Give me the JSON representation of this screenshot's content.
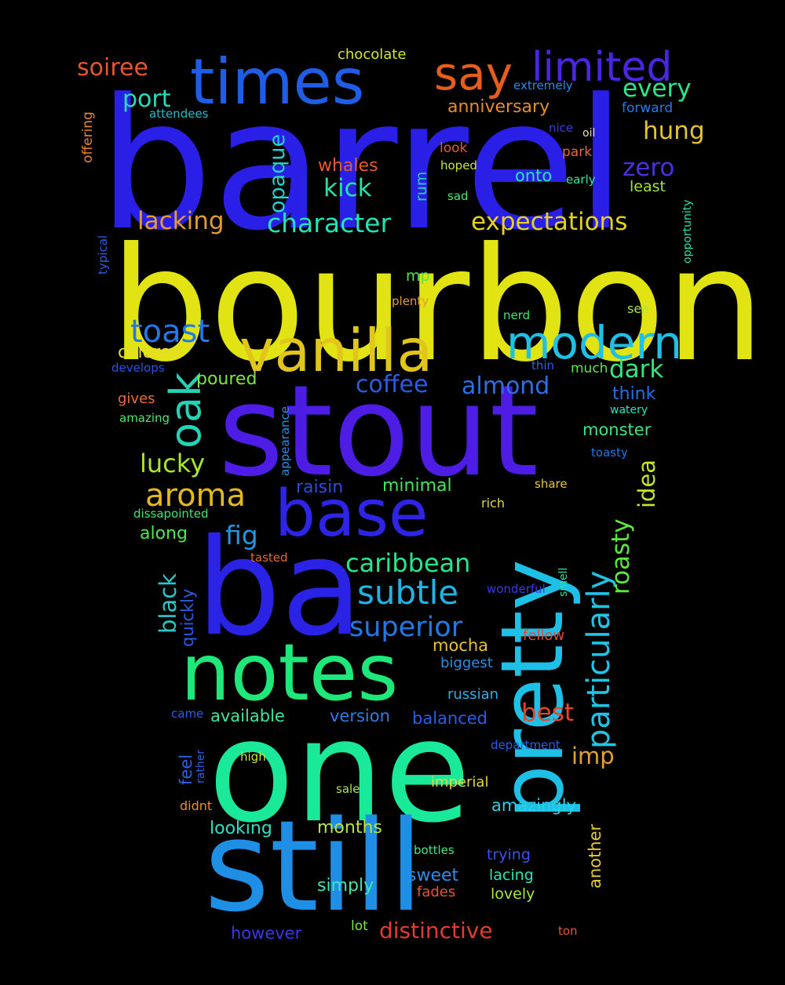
{
  "background": "#000000",
  "words": [
    {
      "text": "barrel",
      "color": "#2a1fe6"
    },
    {
      "text": "bourbon",
      "color": "#e2e312"
    },
    {
      "text": "stout",
      "color": "#4d1de6"
    },
    {
      "text": "one",
      "color": "#1ae99a"
    },
    {
      "text": "ba",
      "color": "#2a22e4"
    },
    {
      "text": "still",
      "color": "#1f8fe6"
    },
    {
      "text": "notes",
      "color": "#1fe87a"
    },
    {
      "text": "pretty",
      "color": "#1ec0e6"
    },
    {
      "text": "times",
      "color": "#1f5de6"
    },
    {
      "text": "vanilla",
      "color": "#e1c51a"
    },
    {
      "text": "base",
      "color": "#2d24e6"
    },
    {
      "text": "modern",
      "color": "#1fc0e4"
    },
    {
      "text": "say",
      "color": "#e65e1e"
    },
    {
      "text": "limited",
      "color": "#4a25e4"
    },
    {
      "text": "oak",
      "color": "#22d3b6"
    },
    {
      "text": "subtle",
      "color": "#20b3e6"
    },
    {
      "text": "toast",
      "color": "#2278e6"
    },
    {
      "text": "aroma",
      "color": "#e3ba1e"
    },
    {
      "text": "superior",
      "color": "#2079e6"
    },
    {
      "text": "caribbean",
      "color": "#25e88c"
    },
    {
      "text": "particularly",
      "color": "#21c3e6"
    },
    {
      "text": "character",
      "color": "#22e4b8"
    },
    {
      "text": "expectations",
      "color": "#e6d21e"
    },
    {
      "text": "lacking",
      "color": "#e69b2e"
    },
    {
      "text": "coffee",
      "color": "#2a5ce6"
    },
    {
      "text": "almond",
      "color": "#2a70e6"
    },
    {
      "text": "lucky",
      "color": "#a8e62a"
    },
    {
      "text": "every",
      "color": "#2de88a"
    },
    {
      "text": "port",
      "color": "#20e0c0"
    },
    {
      "text": "soiree",
      "color": "#e6552e"
    },
    {
      "text": "hung",
      "color": "#e6c22e"
    },
    {
      "text": "kick",
      "color": "#22e4a8"
    },
    {
      "text": "zero",
      "color": "#4a30e4"
    },
    {
      "text": "dark",
      "color": "#34e67e"
    },
    {
      "text": "fig",
      "color": "#2096e4"
    },
    {
      "text": "best",
      "color": "#e6462e"
    },
    {
      "text": "roasty",
      "color": "#5ee640"
    },
    {
      "text": "idea",
      "color": "#c4e62a"
    },
    {
      "text": "imp",
      "color": "#e6a22e"
    },
    {
      "text": "opaque",
      "color": "#22d6d0"
    },
    {
      "text": "black",
      "color": "#2cc6c8"
    },
    {
      "text": "anniversary",
      "color": "#e68e2e"
    },
    {
      "text": "whales",
      "color": "#e65a2e"
    },
    {
      "text": "toasty",
      "color": "#2078e4"
    },
    {
      "text": "chocolate",
      "color": "#d8e62a"
    },
    {
      "text": "colored",
      "color": "#e6dc2e"
    },
    {
      "text": "poured",
      "color": "#7ee640"
    },
    {
      "text": "along",
      "color": "#50e650"
    },
    {
      "text": "raisin",
      "color": "#2e4ae6"
    },
    {
      "text": "minimal",
      "color": "#40e660"
    },
    {
      "text": "mocha",
      "color": "#e6c22e"
    },
    {
      "text": "monster",
      "color": "#40e67a"
    },
    {
      "text": "think",
      "color": "#2a6ee6"
    },
    {
      "text": "available",
      "color": "#40e69a"
    },
    {
      "text": "version",
      "color": "#2a7ee6"
    },
    {
      "text": "balanced",
      "color": "#2a5ee6"
    },
    {
      "text": "looking",
      "color": "#2ee0c8"
    },
    {
      "text": "months",
      "color": "#b8e63a"
    },
    {
      "text": "amazingly",
      "color": "#2ad0e6"
    },
    {
      "text": "simply",
      "color": "#40e6b0"
    },
    {
      "text": "sweet",
      "color": "#2a8ee6"
    },
    {
      "text": "distinctive",
      "color": "#e63a2e"
    },
    {
      "text": "however",
      "color": "#3a38e6"
    },
    {
      "text": "another",
      "color": "#e6c83a"
    },
    {
      "text": "feel",
      "color": "#2a62e6"
    },
    {
      "text": "quickly",
      "color": "#2a5ce6"
    },
    {
      "text": "onto",
      "color": "#2ae6b0"
    },
    {
      "text": "rum",
      "color": "#2ad0c0"
    },
    {
      "text": "least",
      "color": "#a0e63a"
    },
    {
      "text": "mp",
      "color": "#50e650"
    },
    {
      "text": "much",
      "color": "#60e640"
    },
    {
      "text": "imperial",
      "color": "#e6d83a"
    },
    {
      "text": "russian",
      "color": "#2ab0e6"
    },
    {
      "text": "biggest",
      "color": "#2a8ee6"
    },
    {
      "text": "lacing",
      "color": "#2ae6b8"
    },
    {
      "text": "lovely",
      "color": "#a8e63a"
    },
    {
      "text": "trying",
      "color": "#3a52e6"
    },
    {
      "text": "fades",
      "color": "#e6543a"
    },
    {
      "text": "lot",
      "color": "#7ee640"
    },
    {
      "text": "ton",
      "color": "#e6543a"
    },
    {
      "text": "look",
      "color": "#e65a2e"
    },
    {
      "text": "park",
      "color": "#e6683a"
    },
    {
      "text": "rich",
      "color": "#e6d83a"
    },
    {
      "text": "share",
      "color": "#e6c83a"
    },
    {
      "text": "fellow",
      "color": "#e6483a"
    },
    {
      "text": "plenty",
      "color": "#e69a2e"
    },
    {
      "text": "gives",
      "color": "#e66e3a"
    },
    {
      "text": "tasted",
      "color": "#e66a2e"
    },
    {
      "text": "didnt",
      "color": "#e6902e"
    },
    {
      "text": "offering",
      "color": "#e6862e"
    },
    {
      "text": "attendees",
      "color": "#2ab8c8"
    },
    {
      "text": "extremely",
      "color": "#2a8ae6"
    },
    {
      "text": "forward",
      "color": "#2a7ae6"
    },
    {
      "text": "nice",
      "color": "#3a3ae6"
    },
    {
      "text": "oil",
      "color": "#e6e0a0"
    },
    {
      "text": "hoped",
      "color": "#c8e63a"
    },
    {
      "text": "early",
      "color": "#40e6a0"
    },
    {
      "text": "sad",
      "color": "#50e670"
    },
    {
      "text": "opportunity",
      "color": "#2ae6a8"
    },
    {
      "text": "typical",
      "color": "#2a5ee6"
    },
    {
      "text": "nerd",
      "color": "#40e670"
    },
    {
      "text": "see",
      "color": "#a8e63a"
    },
    {
      "text": "develops",
      "color": "#2a52e6"
    },
    {
      "text": "thin",
      "color": "#2a5ee6"
    },
    {
      "text": "watery",
      "color": "#2ae6c0"
    },
    {
      "text": "amazing",
      "color": "#50e670"
    },
    {
      "text": "appearance",
      "color": "#2a8ee6"
    },
    {
      "text": "dissapointed",
      "color": "#40e670"
    },
    {
      "text": "wonderful",
      "color": "#3a3ae6"
    },
    {
      "text": "smell",
      "color": "#2ae6a0"
    },
    {
      "text": "came",
      "color": "#2a5ee6"
    },
    {
      "text": "rather",
      "color": "#2a5ee6"
    },
    {
      "text": "high",
      "color": "#c8e63a"
    },
    {
      "text": "sale",
      "color": "#a8e63a"
    },
    {
      "text": "department",
      "color": "#2a5ee6"
    },
    {
      "text": "bottles",
      "color": "#40e680"
    }
  ]
}
